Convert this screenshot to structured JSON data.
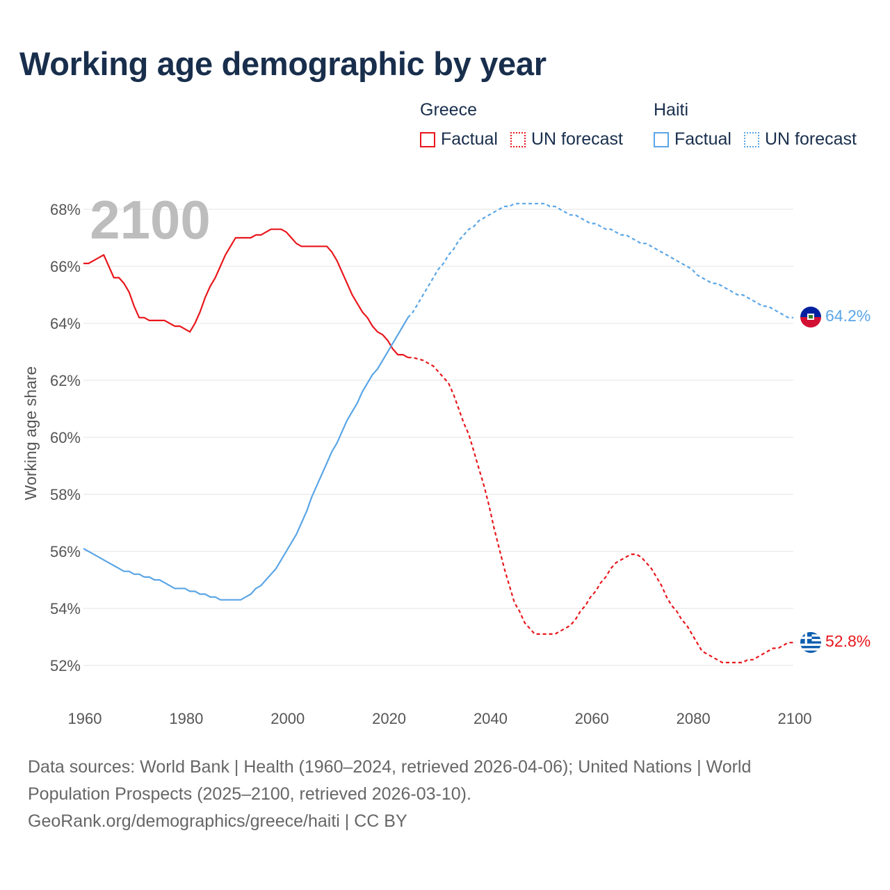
{
  "title": "Working age demographic by year",
  "legend": {
    "groups": [
      {
        "name": "Greece",
        "color": "#e8161c",
        "factual_label": "Factual",
        "forecast_label": "UN forecast"
      },
      {
        "name": "Haiti",
        "color": "#5aa5e6",
        "factual_label": "Factual",
        "forecast_label": "UN forecast"
      }
    ]
  },
  "footer": {
    "sources": "Data sources: World Bank | Health (1960–2024, retrieved 2026-04-06); United Nations | World Population Prospects (2025–2100, retrieved 2026-03-10).",
    "credit": "GeoRank.org/demographics/greece/haiti | CC BY"
  },
  "chart_data": {
    "type": "line",
    "title": "Working age demographic by year",
    "year_label": "2100",
    "xlabel": "",
    "ylabel": "Working age share",
    "xlim": [
      1960,
      2100
    ],
    "ylim": [
      51,
      69
    ],
    "x_ticks": [
      1960,
      1980,
      2000,
      2020,
      2040,
      2060,
      2080,
      2100
    ],
    "y_ticks": [
      52,
      54,
      56,
      58,
      60,
      62,
      64,
      66,
      68
    ],
    "y_tick_labels": [
      "52%",
      "54%",
      "56%",
      "58%",
      "60%",
      "62%",
      "64%",
      "66%",
      "68%"
    ],
    "forecast_start": 2024,
    "series": [
      {
        "name": "Greece",
        "color": "#e8161c",
        "end_label": "52.8%",
        "flag_icon": "greece-flag-icon",
        "points": [
          [
            1960,
            66.1
          ],
          [
            1961,
            66.1
          ],
          [
            1962,
            66.2
          ],
          [
            1963,
            66.3
          ],
          [
            1964,
            66.4
          ],
          [
            1965,
            66.0
          ],
          [
            1966,
            65.6
          ],
          [
            1967,
            65.6
          ],
          [
            1968,
            65.4
          ],
          [
            1969,
            65.1
          ],
          [
            1970,
            64.6
          ],
          [
            1971,
            64.2
          ],
          [
            1972,
            64.2
          ],
          [
            1973,
            64.1
          ],
          [
            1974,
            64.1
          ],
          [
            1975,
            64.1
          ],
          [
            1976,
            64.1
          ],
          [
            1977,
            64.0
          ],
          [
            1978,
            63.9
          ],
          [
            1979,
            63.9
          ],
          [
            1980,
            63.8
          ],
          [
            1981,
            63.7
          ],
          [
            1982,
            64.0
          ],
          [
            1983,
            64.4
          ],
          [
            1984,
            64.9
          ],
          [
            1985,
            65.3
          ],
          [
            1986,
            65.6
          ],
          [
            1987,
            66.0
          ],
          [
            1988,
            66.4
          ],
          [
            1989,
            66.7
          ],
          [
            1990,
            67.0
          ],
          [
            1991,
            67.0
          ],
          [
            1992,
            67.0
          ],
          [
            1993,
            67.0
          ],
          [
            1994,
            67.1
          ],
          [
            1995,
            67.1
          ],
          [
            1996,
            67.2
          ],
          [
            1997,
            67.3
          ],
          [
            1998,
            67.3
          ],
          [
            1999,
            67.3
          ],
          [
            2000,
            67.2
          ],
          [
            2001,
            67.0
          ],
          [
            2002,
            66.8
          ],
          [
            2003,
            66.7
          ],
          [
            2004,
            66.7
          ],
          [
            2005,
            66.7
          ],
          [
            2006,
            66.7
          ],
          [
            2007,
            66.7
          ],
          [
            2008,
            66.7
          ],
          [
            2009,
            66.5
          ],
          [
            2010,
            66.2
          ],
          [
            2011,
            65.8
          ],
          [
            2012,
            65.4
          ],
          [
            2013,
            65.0
          ],
          [
            2014,
            64.7
          ],
          [
            2015,
            64.4
          ],
          [
            2016,
            64.2
          ],
          [
            2017,
            63.9
          ],
          [
            2018,
            63.7
          ],
          [
            2019,
            63.6
          ],
          [
            2020,
            63.4
          ],
          [
            2021,
            63.1
          ],
          [
            2022,
            62.9
          ],
          [
            2023,
            62.9
          ],
          [
            2024,
            62.8
          ],
          [
            2025,
            62.8
          ],
          [
            2026,
            62.75
          ],
          [
            2027,
            62.7
          ],
          [
            2028,
            62.6
          ],
          [
            2029,
            62.5
          ],
          [
            2030,
            62.3
          ],
          [
            2031,
            62.1
          ],
          [
            2032,
            61.9
          ],
          [
            2033,
            61.5
          ],
          [
            2034,
            61.0
          ],
          [
            2035,
            60.5
          ],
          [
            2036,
            60.1
          ],
          [
            2037,
            59.5
          ],
          [
            2038,
            58.9
          ],
          [
            2039,
            58.3
          ],
          [
            2040,
            57.6
          ],
          [
            2041,
            56.8
          ],
          [
            2042,
            56.1
          ],
          [
            2043,
            55.4
          ],
          [
            2044,
            54.8
          ],
          [
            2045,
            54.2
          ],
          [
            2046,
            53.9
          ],
          [
            2047,
            53.5
          ],
          [
            2048,
            53.3
          ],
          [
            2049,
            53.1
          ],
          [
            2050,
            53.1
          ],
          [
            2051,
            53.1
          ],
          [
            2052,
            53.1
          ],
          [
            2053,
            53.1
          ],
          [
            2054,
            53.2
          ],
          [
            2055,
            53.3
          ],
          [
            2056,
            53.4
          ],
          [
            2057,
            53.6
          ],
          [
            2058,
            53.9
          ],
          [
            2059,
            54.1
          ],
          [
            2060,
            54.4
          ],
          [
            2061,
            54.6
          ],
          [
            2062,
            54.9
          ],
          [
            2063,
            55.1
          ],
          [
            2064,
            55.4
          ],
          [
            2065,
            55.6
          ],
          [
            2066,
            55.7
          ],
          [
            2067,
            55.8
          ],
          [
            2068,
            55.9
          ],
          [
            2069,
            55.9
          ],
          [
            2070,
            55.8
          ],
          [
            2071,
            55.6
          ],
          [
            2072,
            55.4
          ],
          [
            2073,
            55.1
          ],
          [
            2074,
            54.8
          ],
          [
            2075,
            54.4
          ],
          [
            2076,
            54.1
          ],
          [
            2077,
            53.9
          ],
          [
            2078,
            53.6
          ],
          [
            2079,
            53.4
          ],
          [
            2080,
            53.1
          ],
          [
            2081,
            52.8
          ],
          [
            2082,
            52.5
          ],
          [
            2083,
            52.4
          ],
          [
            2084,
            52.3
          ],
          [
            2085,
            52.2
          ],
          [
            2086,
            52.1
          ],
          [
            2087,
            52.1
          ],
          [
            2088,
            52.1
          ],
          [
            2089,
            52.1
          ],
          [
            2090,
            52.1
          ],
          [
            2091,
            52.2
          ],
          [
            2092,
            52.2
          ],
          [
            2093,
            52.3
          ],
          [
            2094,
            52.4
          ],
          [
            2095,
            52.5
          ],
          [
            2096,
            52.6
          ],
          [
            2097,
            52.6
          ],
          [
            2098,
            52.7
          ],
          [
            2099,
            52.8
          ],
          [
            2100,
            52.8
          ]
        ]
      },
      {
        "name": "Haiti",
        "color": "#5aa5e6",
        "end_label": "64.2%",
        "flag_icon": "haiti-flag-icon",
        "points": [
          [
            1960,
            56.1
          ],
          [
            1961,
            56.0
          ],
          [
            1962,
            55.9
          ],
          [
            1963,
            55.8
          ],
          [
            1964,
            55.7
          ],
          [
            1965,
            55.6
          ],
          [
            1966,
            55.5
          ],
          [
            1967,
            55.4
          ],
          [
            1968,
            55.3
          ],
          [
            1969,
            55.3
          ],
          [
            1970,
            55.2
          ],
          [
            1971,
            55.2
          ],
          [
            1972,
            55.1
          ],
          [
            1973,
            55.1
          ],
          [
            1974,
            55.0
          ],
          [
            1975,
            55.0
          ],
          [
            1976,
            54.9
          ],
          [
            1977,
            54.8
          ],
          [
            1978,
            54.7
          ],
          [
            1979,
            54.7
          ],
          [
            1980,
            54.7
          ],
          [
            1981,
            54.6
          ],
          [
            1982,
            54.6
          ],
          [
            1983,
            54.5
          ],
          [
            1984,
            54.5
          ],
          [
            1985,
            54.4
          ],
          [
            1986,
            54.4
          ],
          [
            1987,
            54.3
          ],
          [
            1988,
            54.3
          ],
          [
            1989,
            54.3
          ],
          [
            1990,
            54.3
          ],
          [
            1991,
            54.3
          ],
          [
            1992,
            54.4
          ],
          [
            1993,
            54.5
          ],
          [
            1994,
            54.7
          ],
          [
            1995,
            54.8
          ],
          [
            1996,
            55.0
          ],
          [
            1997,
            55.2
          ],
          [
            1998,
            55.4
          ],
          [
            1999,
            55.7
          ],
          [
            2000,
            56.0
          ],
          [
            2001,
            56.3
          ],
          [
            2002,
            56.6
          ],
          [
            2003,
            57.0
          ],
          [
            2004,
            57.4
          ],
          [
            2005,
            57.9
          ],
          [
            2006,
            58.3
          ],
          [
            2007,
            58.7
          ],
          [
            2008,
            59.1
          ],
          [
            2009,
            59.5
          ],
          [
            2010,
            59.8
          ],
          [
            2011,
            60.2
          ],
          [
            2012,
            60.6
          ],
          [
            2013,
            60.9
          ],
          [
            2014,
            61.2
          ],
          [
            2015,
            61.6
          ],
          [
            2016,
            61.9
          ],
          [
            2017,
            62.2
          ],
          [
            2018,
            62.4
          ],
          [
            2019,
            62.7
          ],
          [
            2020,
            63.0
          ],
          [
            2021,
            63.3
          ],
          [
            2022,
            63.6
          ],
          [
            2023,
            63.9
          ],
          [
            2024,
            64.2
          ],
          [
            2025,
            64.4
          ],
          [
            2026,
            64.7
          ],
          [
            2027,
            65.0
          ],
          [
            2028,
            65.3
          ],
          [
            2029,
            65.6
          ],
          [
            2030,
            65.9
          ],
          [
            2031,
            66.1
          ],
          [
            2032,
            66.4
          ],
          [
            2033,
            66.6
          ],
          [
            2034,
            66.9
          ],
          [
            2035,
            67.1
          ],
          [
            2036,
            67.3
          ],
          [
            2037,
            67.4
          ],
          [
            2038,
            67.6
          ],
          [
            2039,
            67.7
          ],
          [
            2040,
            67.8
          ],
          [
            2041,
            67.9
          ],
          [
            2042,
            68.0
          ],
          [
            2043,
            68.1
          ],
          [
            2044,
            68.1
          ],
          [
            2045,
            68.2
          ],
          [
            2046,
            68.2
          ],
          [
            2047,
            68.2
          ],
          [
            2048,
            68.2
          ],
          [
            2049,
            68.2
          ],
          [
            2050,
            68.2
          ],
          [
            2051,
            68.2
          ],
          [
            2052,
            68.1
          ],
          [
            2053,
            68.1
          ],
          [
            2054,
            68.0
          ],
          [
            2055,
            67.9
          ],
          [
            2056,
            67.8
          ],
          [
            2057,
            67.8
          ],
          [
            2058,
            67.7
          ],
          [
            2059,
            67.6
          ],
          [
            2060,
            67.5
          ],
          [
            2061,
            67.5
          ],
          [
            2062,
            67.4
          ],
          [
            2063,
            67.3
          ],
          [
            2064,
            67.3
          ],
          [
            2065,
            67.2
          ],
          [
            2066,
            67.1
          ],
          [
            2067,
            67.1
          ],
          [
            2068,
            67.0
          ],
          [
            2069,
            66.9
          ],
          [
            2070,
            66.8
          ],
          [
            2071,
            66.8
          ],
          [
            2072,
            66.7
          ],
          [
            2073,
            66.6
          ],
          [
            2074,
            66.5
          ],
          [
            2075,
            66.4
          ],
          [
            2076,
            66.3
          ],
          [
            2077,
            66.2
          ],
          [
            2078,
            66.1
          ],
          [
            2079,
            66.0
          ],
          [
            2080,
            65.9
          ],
          [
            2081,
            65.7
          ],
          [
            2082,
            65.6
          ],
          [
            2083,
            65.5
          ],
          [
            2084,
            65.4
          ],
          [
            2085,
            65.4
          ],
          [
            2086,
            65.3
          ],
          [
            2087,
            65.2
          ],
          [
            2088,
            65.1
          ],
          [
            2089,
            65.0
          ],
          [
            2090,
            65.0
          ],
          [
            2091,
            64.9
          ],
          [
            2092,
            64.8
          ],
          [
            2093,
            64.7
          ],
          [
            2094,
            64.6
          ],
          [
            2095,
            64.6
          ],
          [
            2096,
            64.5
          ],
          [
            2097,
            64.4
          ],
          [
            2098,
            64.3
          ],
          [
            2099,
            64.2
          ],
          [
            2100,
            64.2
          ]
        ]
      }
    ]
  }
}
